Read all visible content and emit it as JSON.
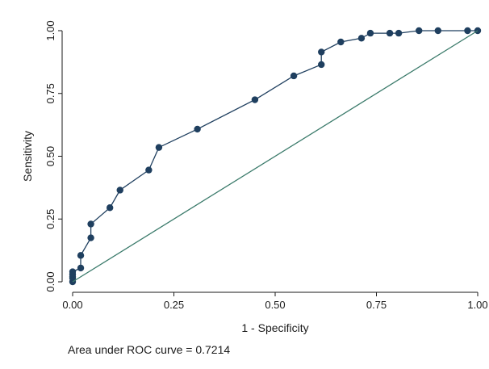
{
  "chart_data": {
    "type": "line",
    "xlabel": "1 - Specificity",
    "ylabel": "Sensitivity",
    "xlim": [
      0,
      1
    ],
    "ylim": [
      0,
      1
    ],
    "x_ticks": [
      "0.00",
      "0.25",
      "0.50",
      "0.75",
      "1.00"
    ],
    "y_ticks": [
      "0.00",
      "0.25",
      "0.50",
      "0.75",
      "1.00"
    ],
    "grid": false,
    "series": [
      {
        "color": "#1f3f5f",
        "markers": true,
        "x": [
          0.0,
          0.0,
          0.0,
          0.0,
          0.0,
          0.02,
          0.02,
          0.045,
          0.045,
          0.092,
          0.117,
          0.188,
          0.213,
          0.308,
          0.45,
          0.546,
          0.614,
          0.614,
          0.662,
          0.713,
          0.735,
          0.783,
          0.805,
          0.855,
          0.902,
          0.975,
          1.0
        ],
        "y": [
          0.0,
          0.015,
          0.02,
          0.03,
          0.04,
          0.055,
          0.105,
          0.175,
          0.23,
          0.295,
          0.365,
          0.445,
          0.535,
          0.608,
          0.725,
          0.82,
          0.865,
          0.915,
          0.955,
          0.97,
          0.99,
          0.99,
          0.99,
          1.0,
          1.0,
          1.0,
          1.0
        ]
      },
      {
        "color": "#3a7a6a",
        "markers": false,
        "x": [
          0,
          1
        ],
        "y": [
          0,
          1
        ]
      }
    ]
  },
  "footer": {
    "note": "Area under ROC curve = 0.7214"
  },
  "colors": {
    "roc_line": "#1f3f5f",
    "reference_line": "#3a7a6a"
  }
}
